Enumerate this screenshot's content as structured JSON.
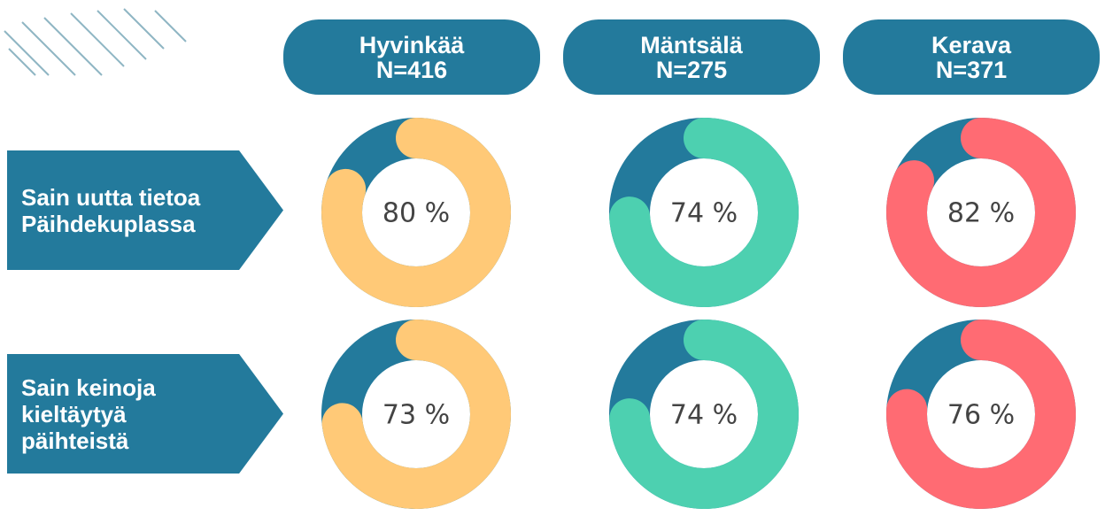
{
  "chart_data": {
    "type": "donut",
    "categories": [
      "Hyvinkää",
      "Mäntsälä",
      "Kerava"
    ],
    "sample_sizes": [
      "N=416",
      "N=275",
      "N=371"
    ],
    "colors": [
      "#ffc977",
      "#4dd0b0",
      "#ff6b73"
    ],
    "rest_color": "#237a9c",
    "series": [
      {
        "name": "Sain uutta tietoa Päihdekuplassa",
        "values": [
          80,
          74,
          82
        ],
        "value_labels": [
          "80 %",
          "74 %",
          "82 %"
        ]
      },
      {
        "name": "Sain keinoja kieltäytyä päihteistä",
        "values": [
          73,
          74,
          76
        ],
        "value_labels": [
          "73 %",
          "74 %",
          "76 %"
        ]
      }
    ]
  }
}
